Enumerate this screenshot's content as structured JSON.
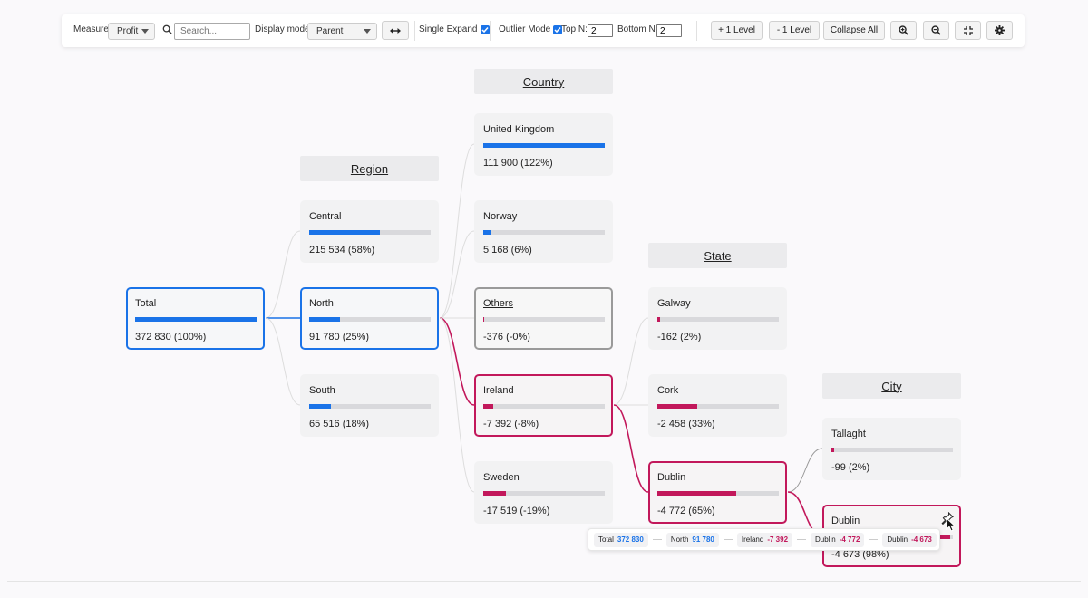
{
  "toolbar": {
    "measure_label": "Measure",
    "measure_value": "Profit",
    "search_placeholder": "Search...",
    "display_mode_label": "Display mode",
    "display_mode_value": "Parent",
    "single_expand_label": "Single Expand",
    "single_expand_checked": true,
    "outlier_mode_label": "Outlier Mode",
    "outlier_mode_checked": true,
    "top_n_label": "Top N:",
    "top_n_value": "2",
    "bottom_n_label": "Bottom N:",
    "bottom_n_value": "2",
    "plus_level_label": "+ 1 Level",
    "minus_level_label": "- 1 Level",
    "collapse_all_label": "Collapse All",
    "icons": [
      "swap-icon",
      "zoom-in-icon",
      "zoom-out-icon",
      "fit-icon",
      "settings-icon"
    ]
  },
  "colors": {
    "positive": "#1a73e8",
    "negative": "#c2185b",
    "track": "#d9d9dc"
  },
  "headers": {
    "region": "Region",
    "country": "Country",
    "state": "State",
    "city": "City"
  },
  "nodes": {
    "total": {
      "name": "Total",
      "value": "372 830 (100%)",
      "bar": 1.0,
      "sign": "positive"
    },
    "central": {
      "name": "Central",
      "value": "215 534 (58%)",
      "bar": 0.58,
      "sign": "positive"
    },
    "north": {
      "name": "North",
      "value": "91 780 (25%)",
      "bar": 0.25,
      "sign": "positive"
    },
    "south": {
      "name": "South",
      "value": "65 516 (18%)",
      "bar": 0.18,
      "sign": "positive"
    },
    "united_kingdom": {
      "name": "United Kingdom",
      "value": "111 900 (122%)",
      "bar": 1.0,
      "sign": "positive"
    },
    "norway": {
      "name": "Norway",
      "value": "5 168 (6%)",
      "bar": 0.06,
      "sign": "positive"
    },
    "others": {
      "name": "Others",
      "value": "-376 (-0%)",
      "bar": 0.005,
      "sign": "negative"
    },
    "ireland": {
      "name": "Ireland",
      "value": "-7 392 (-8%)",
      "bar": 0.08,
      "sign": "negative"
    },
    "sweden": {
      "name": "Sweden",
      "value": "-17 519 (-19%)",
      "bar": 0.19,
      "sign": "negative"
    },
    "galway": {
      "name": "Galway",
      "value": "-162 (2%)",
      "bar": 0.02,
      "sign": "negative"
    },
    "cork": {
      "name": "Cork",
      "value": "-2 458 (33%)",
      "bar": 0.33,
      "sign": "negative"
    },
    "dublin_state": {
      "name": "Dublin",
      "value": "-4 772 (65%)",
      "bar": 0.65,
      "sign": "negative"
    },
    "tallaght": {
      "name": "Tallaght",
      "value": "-99 (2%)",
      "bar": 0.02,
      "sign": "negative"
    },
    "dublin_city": {
      "name": "Dublin",
      "value": "-4 673 (98%)",
      "bar": 0.98,
      "sign": "negative"
    }
  },
  "breadcrumb": [
    {
      "label": "Total",
      "value": "372 830",
      "sign": "positive"
    },
    {
      "label": "North",
      "value": "91 780",
      "sign": "positive"
    },
    {
      "label": "Ireland",
      "value": "-7 392",
      "sign": "negative"
    },
    {
      "label": "Dublin",
      "value": "-4 772",
      "sign": "negative"
    },
    {
      "label": "Dublin",
      "value": "-4 673",
      "sign": "negative"
    }
  ]
}
